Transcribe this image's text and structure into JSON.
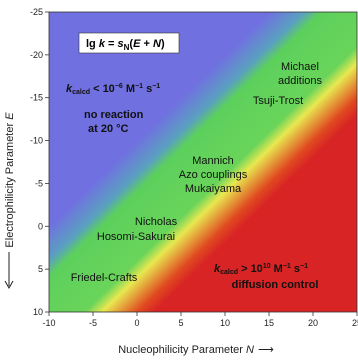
{
  "chart_data": {
    "type": "heatmap",
    "xlabel": "Nucleophilicity Parameter N",
    "ylabel": "Electrophilicity Parameter E",
    "xlim": [
      -10,
      25
    ],
    "ylim": [
      10,
      -25
    ],
    "x_ticks": [
      "-10",
      "-5",
      "0",
      "5",
      "10",
      "15",
      "20",
      "25"
    ],
    "y_ticks": [
      "-25",
      "-20",
      "-15",
      "-10",
      "-5",
      "0",
      "5",
      "10"
    ],
    "equation": "lg k = sN(E + N)",
    "color_scale": [
      {
        "sum_E_plus_N": -10,
        "color": "#7070e0",
        "meaning": "no reaction"
      },
      {
        "sum_E_plus_N": -6,
        "color": "#5aa0c0"
      },
      {
        "sum_E_plus_N": -4,
        "color": "#5cd05c"
      },
      {
        "sum_E_plus_N": 4,
        "color": "#6ad45a"
      },
      {
        "sum_E_plus_N": 6,
        "color": "#e8e850"
      },
      {
        "sum_E_plus_N": 10,
        "color": "#e04a20"
      },
      {
        "sum_E_plus_N": 12,
        "color": "#d82424",
        "meaning": "diffusion control"
      }
    ],
    "annotations": [
      {
        "text": "k_calcd < 10^-6 M^-1 s^-1",
        "x": -5.5,
        "y": -14
      },
      {
        "text": "no reaction",
        "x": -5.5,
        "y": -11
      },
      {
        "text": "at 20 °C",
        "x": -5.5,
        "y": -8.5
      },
      {
        "text": "Michael",
        "x": 20,
        "y": -19
      },
      {
        "text": "additions",
        "x": 20,
        "y": -16.5
      },
      {
        "text": "Tsuji-Trost",
        "x": 16,
        "y": -13
      },
      {
        "text": "Mannich",
        "x": 5,
        "y": -6
      },
      {
        "text": "Azo couplings",
        "x": 5,
        "y": -3.6
      },
      {
        "text": "Mukaiyama",
        "x": 5,
        "y": -1.2
      },
      {
        "text": "Nicholas",
        "x": -1.5,
        "y": 3
      },
      {
        "text": "Hosomi-Sakurai",
        "x": -1.5,
        "y": 5.5
      },
      {
        "text": "Friedel-Crafts",
        "x": -5.5,
        "y": 12
      },
      {
        "text": "k_calcd > 10^10 M^-1 s^-1",
        "x": 16.5,
        "y": 10
      },
      {
        "text": "diffusion control",
        "x": 16.5,
        "y": 12.6
      }
    ]
  },
  "labels": {
    "equation_lg": "lg",
    "equation_k": "k",
    "equation_eq": " = ",
    "equation_s": "s",
    "equation_sub": "N",
    "equation_rest": "(",
    "equation_E": "E",
    "equation_plus": " + ",
    "equation_N": "N",
    "equation_close": ")",
    "low_k_pre": "k",
    "low_k_sub": "calcd",
    "low_k_post": " < 10",
    "low_k_exp": "−6",
    "low_k_units": " M",
    "low_k_u_exp1": "−1",
    "low_k_s": " s",
    "low_k_u_exp2": "−1",
    "no_reaction": "no reaction",
    "at_temp": "at 20 °C",
    "michael": "Michael",
    "additions": "additions",
    "tsuji": "Tsuji-Trost",
    "mannich": "Mannich",
    "azo": "Azo couplings",
    "mukaiyama": "Mukaiyama",
    "nicholas": "Nicholas",
    "hosomi": "Hosomi-Sakurai",
    "friedel": "Friedel-Crafts",
    "high_k_pre": "k",
    "high_k_sub": "calcd",
    "high_k_post": " > 10",
    "high_k_exp": "10",
    "high_k_units": " M",
    "high_k_u_exp1": "−1",
    "high_k_s": " s",
    "high_k_u_exp2": "−1",
    "diffusion": "diffusion control",
    "xlabel_text": "Nucleophilicity Parameter ",
    "xlabel_var": "N",
    "xlabel_arrow": "⟶",
    "ylabel_text": "Electrophilicity Parameter ",
    "ylabel_var": "E"
  }
}
